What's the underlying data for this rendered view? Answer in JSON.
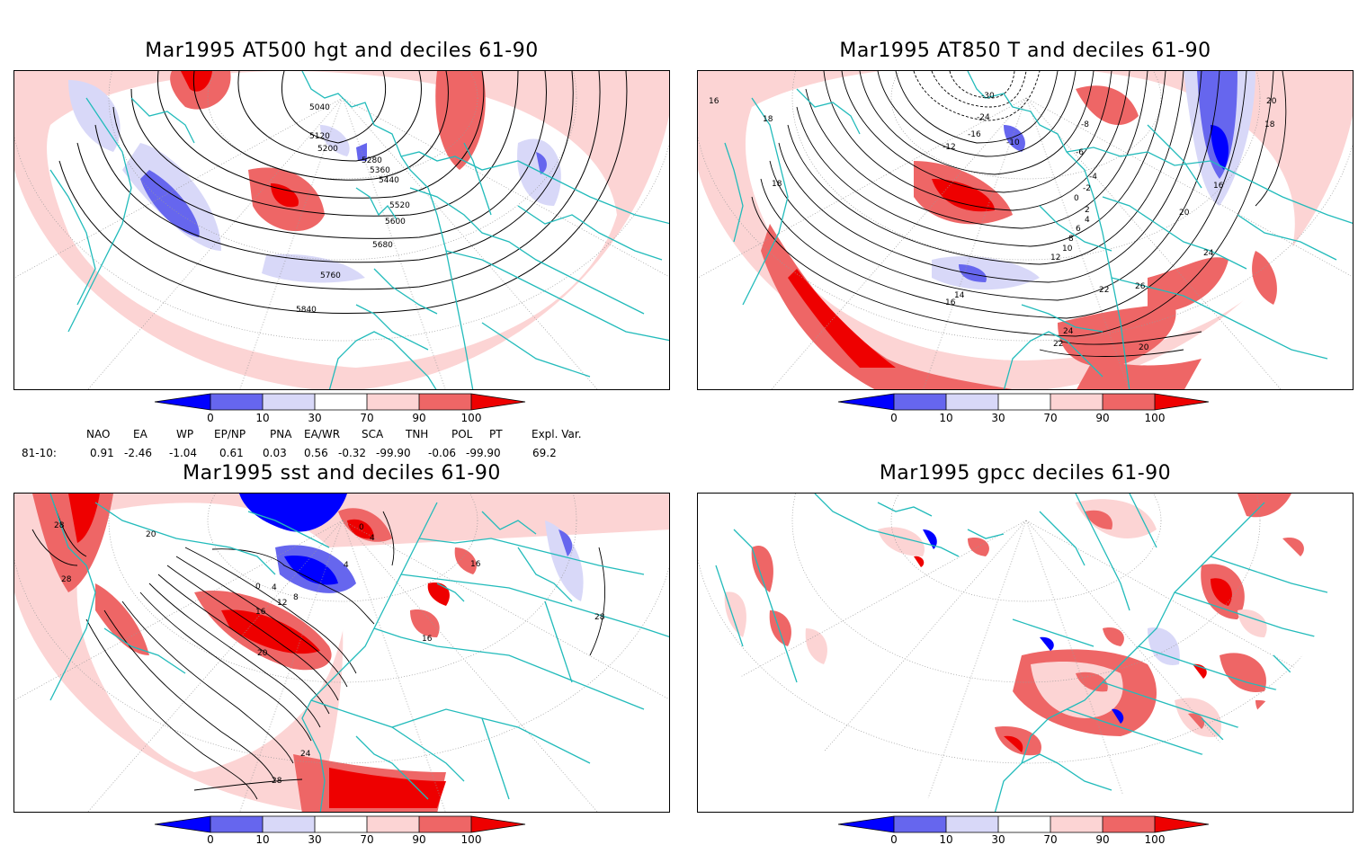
{
  "panels": [
    {
      "title": "Mar1995 AT500 hgt and deciles 61-90",
      "contour_labels": [
        "5040",
        "5120",
        "5200",
        "5280",
        "5360",
        "5440",
        "5520",
        "5600",
        "5680",
        "5760",
        "5840"
      ]
    },
    {
      "title": "Mar1995 AT850 T and deciles 61-90",
      "contour_labels": [
        "16",
        "18",
        "18",
        "-30",
        "-24",
        "-16",
        "-12",
        "-10",
        "-8",
        "-6",
        "-4",
        "-2",
        "0",
        "2",
        "4",
        "6",
        "8",
        "10",
        "12",
        "14",
        "16",
        "20",
        "20",
        "18",
        "16",
        "24",
        "22",
        "26",
        "24",
        "22",
        "20"
      ]
    },
    {
      "title": "Mar1995 sst and deciles 61-90",
      "contour_labels": [
        "28",
        "28",
        "20",
        "0",
        "4",
        "8",
        "12",
        "16",
        "20",
        "24",
        "28",
        "0",
        "4",
        "4",
        "16",
        "16",
        "28"
      ]
    },
    {
      "title": "Mar1995 gpcc deciles 61-90",
      "contour_labels": []
    }
  ],
  "colorbar": {
    "labels": [
      "0",
      "10",
      "30",
      "70",
      "90",
      "100"
    ],
    "colors": [
      "#0000ff",
      "#6666ee",
      "#d8d8f8",
      "#ffffff",
      "#fcd4d4",
      "#ee6666",
      "#ee0000"
    ]
  },
  "indices": {
    "headers": [
      "NAO",
      "EA",
      "WP",
      "EP/NP",
      "PNA",
      "EA/WR",
      "SCA",
      "TNH",
      "POL",
      "PT",
      "Expl. Var."
    ],
    "row_label": "81-10:",
    "values": [
      "0.91",
      "-2.46",
      "-1.04",
      "0.61",
      "0.03",
      "0.56",
      "-0.32",
      "-99.90",
      "-0.06",
      "-99.90",
      "69.2"
    ]
  },
  "colors": {
    "coast": "#22bbbb",
    "grid": "#999999",
    "contour": "#000000"
  }
}
